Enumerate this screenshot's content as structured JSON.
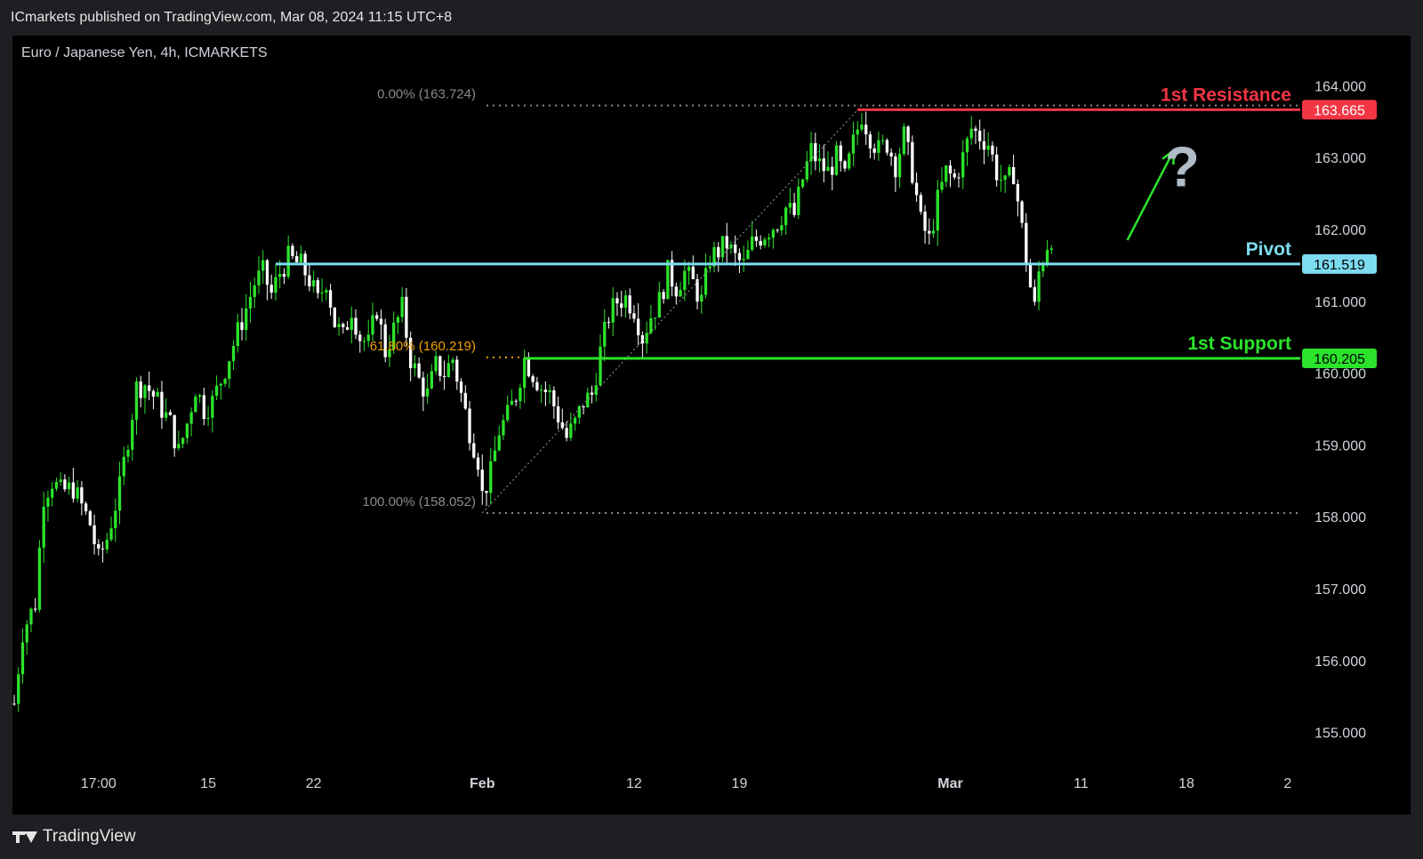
{
  "header": {
    "published_line": "ICmarkets published on TradingView.com, Mar 08, 2024 11:15 UTC+8"
  },
  "footer": {
    "brand": "TradingView",
    "logo_icon": "tradingview-logo-icon"
  },
  "chart_data": {
    "type": "candlestick",
    "symbol_label": "Euro / Japanese Yen, 4h, ICMARKETS",
    "y_ticks": [
      "164.000",
      "163.000",
      "162.000",
      "161.000",
      "160.000",
      "159.000",
      "158.000",
      "157.000",
      "156.000",
      "155.000"
    ],
    "ylim": [
      154.55,
      164.45
    ],
    "x_ticks": [
      {
        "label": "17:00",
        "bar": 20
      },
      {
        "label": "15",
        "bar": 46
      },
      {
        "label": "22",
        "bar": 71
      },
      {
        "label": "Feb",
        "bar": 111
      },
      {
        "label": "12",
        "bar": 147
      },
      {
        "label": "19",
        "bar": 172
      },
      {
        "label": "Mar",
        "bar": 222
      },
      {
        "label": "11",
        "bar": 253
      },
      {
        "label": "18",
        "bar": 278
      },
      {
        "label": "2",
        "bar": 302
      }
    ],
    "x_tick_bold": [
      "Feb",
      "Mar"
    ],
    "x_range_bars": [
      0,
      305
    ],
    "price_path": [
      [
        0,
        155.4
      ],
      [
        2,
        156.4
      ],
      [
        5,
        156.8
      ],
      [
        7,
        158.3
      ],
      [
        9,
        158.5
      ],
      [
        11,
        158.35
      ],
      [
        14,
        158.4
      ],
      [
        18,
        157.9
      ],
      [
        20,
        157.4
      ],
      [
        22,
        157.7
      ],
      [
        25,
        158.4
      ],
      [
        27,
        159.1
      ],
      [
        29,
        159.8
      ],
      [
        31,
        159.85
      ],
      [
        34,
        159.6
      ],
      [
        37,
        159.3
      ],
      [
        39,
        158.9
      ],
      [
        41,
        159.3
      ],
      [
        43,
        159.8
      ],
      [
        45,
        159.5
      ],
      [
        47,
        159.6
      ],
      [
        49,
        159.9
      ],
      [
        52,
        160.4
      ],
      [
        55,
        160.9
      ],
      [
        57,
        161.25
      ],
      [
        59,
        161.4
      ],
      [
        61,
        161.1
      ],
      [
        63,
        161.4
      ],
      [
        65,
        161.6
      ],
      [
        68,
        161.5
      ],
      [
        70,
        161.3
      ],
      [
        72,
        161.0
      ],
      [
        74,
        161.3
      ],
      [
        76,
        160.7
      ],
      [
        78,
        160.5
      ],
      [
        80,
        160.9
      ],
      [
        82,
        160.5
      ],
      [
        84,
        160.4
      ],
      [
        86,
        160.9
      ],
      [
        88,
        160.3
      ],
      [
        90,
        160.6
      ],
      [
        92,
        160.9
      ],
      [
        94,
        160.2
      ],
      [
        96,
        159.9
      ],
      [
        98,
        159.7
      ],
      [
        100,
        160.1
      ],
      [
        102,
        160.0
      ],
      [
        104,
        160.2
      ],
      [
        106,
        159.7
      ],
      [
        108,
        159.2
      ],
      [
        110,
        158.8
      ],
      [
        111,
        158.3
      ],
      [
        113,
        158.6
      ],
      [
        115,
        159.2
      ],
      [
        117,
        159.4
      ],
      [
        119,
        159.7
      ],
      [
        121,
        160.2
      ],
      [
        123,
        160.0
      ],
      [
        125,
        159.8
      ],
      [
        127,
        159.7
      ],
      [
        129,
        159.4
      ],
      [
        131,
        159.1
      ],
      [
        133,
        159.3
      ],
      [
        135,
        159.6
      ],
      [
        137,
        159.7
      ],
      [
        139,
        160.3
      ],
      [
        141,
        160.8
      ],
      [
        143,
        161.0
      ],
      [
        145,
        161.05
      ],
      [
        147,
        160.9
      ],
      [
        149,
        160.5
      ],
      [
        151,
        160.8
      ],
      [
        153,
        161.0
      ],
      [
        155,
        161.4
      ],
      [
        157,
        161.2
      ],
      [
        159,
        161.4
      ],
      [
        161,
        161.25
      ],
      [
        163,
        161.0
      ],
      [
        165,
        161.6
      ],
      [
        167,
        161.7
      ],
      [
        169,
        161.8
      ],
      [
        171,
        161.6
      ],
      [
        173,
        161.5
      ],
      [
        175,
        161.8
      ],
      [
        177,
        161.9
      ],
      [
        179,
        162.0
      ],
      [
        181,
        162.1
      ],
      [
        183,
        162.3
      ],
      [
        185,
        162.2
      ],
      [
        187,
        162.7
      ],
      [
        189,
        163.1
      ],
      [
        191,
        162.9
      ],
      [
        193,
        162.8
      ],
      [
        195,
        163.0
      ],
      [
        197,
        162.7
      ],
      [
        199,
        163.2
      ],
      [
        201,
        163.6
      ],
      [
        203,
        163.3
      ],
      [
        205,
        163.1
      ],
      [
        207,
        163.2
      ],
      [
        209,
        162.9
      ],
      [
        211,
        163.3
      ],
      [
        213,
        162.8
      ],
      [
        215,
        162.1
      ],
      [
        217,
        161.85
      ],
      [
        219,
        162.4
      ],
      [
        221,
        162.8
      ],
      [
        223,
        162.7
      ],
      [
        225,
        163.0
      ],
      [
        227,
        163.4
      ],
      [
        229,
        163.3
      ],
      [
        231,
        163.2
      ],
      [
        233,
        162.8
      ],
      [
        235,
        162.6
      ],
      [
        237,
        162.8
      ],
      [
        239,
        162.0
      ],
      [
        241,
        161.2
      ],
      [
        242,
        160.9
      ],
      [
        243,
        161.4
      ],
      [
        245,
        161.8
      ],
      [
        246,
        161.9
      ]
    ],
    "levels": [
      {
        "name": "1st Resistance",
        "value": 163.665,
        "value_label": "163.665",
        "color": "#f23645",
        "from_bar": 200
      },
      {
        "name": "Pivot",
        "value": 161.519,
        "value_label": "161.519",
        "color": "#7ddcf0",
        "from_bar": 62
      },
      {
        "name": "1st Support",
        "value": 160.205,
        "value_label": "160.205",
        "color": "#2be32b",
        "from_bar": 121
      }
    ],
    "fibonacci": [
      {
        "label": "0.00% (163.724)",
        "value": 163.724,
        "color": "#8a8a8a",
        "from_bar": 112
      },
      {
        "label": "61.80% (160.219)",
        "value": 160.219,
        "color": "#f0a000",
        "from_bar": 112,
        "to_bar": 121
      },
      {
        "label": "100.00% (158.052)",
        "value": 158.052,
        "color": "#8a8a8a",
        "from_bar": 112
      }
    ],
    "fib_anchor": {
      "from": [
        111,
        158.052
      ],
      "to": [
        201,
        163.724
      ]
    },
    "projection_arrow": {
      "from": [
        264,
        161.85
      ],
      "to": [
        275,
        163.1
      ],
      "color": "#2be32b"
    },
    "question_mark": {
      "text": "?",
      "bar": 277,
      "value": 162.6,
      "color": "#b0bcc8"
    },
    "colors": {
      "up": "#2be32b",
      "down": "#ffffff",
      "background": "#000000",
      "axis_text": "#d1d4dc"
    }
  }
}
